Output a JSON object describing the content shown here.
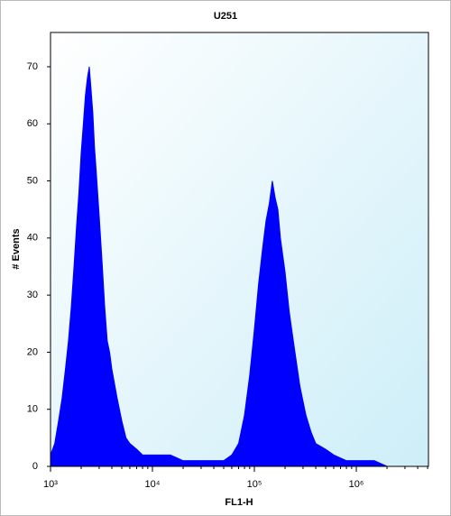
{
  "chart_data": {
    "type": "area",
    "title": "U251",
    "x_label": "FL1-H",
    "y_label": "# Events",
    "x_scale": "log",
    "color": "#0000ff",
    "xlim": [
      1000,
      5100000
    ],
    "xticks": [
      {
        "value": 1000,
        "label": "10³"
      },
      {
        "value": 10000,
        "label": "10⁴"
      },
      {
        "value": 100000,
        "label": "10⁵"
      },
      {
        "value": 1000000,
        "label": "10⁶"
      }
    ],
    "ylim": [
      0,
      76
    ],
    "yticks": [
      0,
      10,
      20,
      30,
      40,
      50,
      60,
      70
    ],
    "x": [
      1000,
      1100,
      1200,
      1300,
      1400,
      1500,
      1600,
      1700,
      1800,
      1900,
      2000,
      2100,
      2200,
      2300,
      2400,
      2500,
      2600,
      2700,
      2800,
      3000,
      3200,
      3400,
      3600,
      3800,
      4000,
      4500,
      5000,
      5500,
      6000,
      7000,
      8000,
      10000,
      15000,
      20000,
      30000,
      50000,
      60000,
      70000,
      80000,
      90000,
      100000,
      110000,
      120000,
      130000,
      140000,
      150000,
      160000,
      170000,
      180000,
      200000,
      220000,
      250000,
      280000,
      320000,
      360000,
      400000,
      500000,
      600000,
      800000,
      1000000,
      1500000,
      2000000,
      3000000
    ],
    "values": [
      2,
      4,
      8,
      12,
      17,
      22,
      28,
      35,
      42,
      48,
      55,
      60,
      65,
      68,
      70,
      66,
      62,
      56,
      52,
      44,
      36,
      28,
      22,
      20,
      17,
      12,
      8,
      5,
      4,
      3,
      2,
      2,
      2,
      1,
      1,
      1,
      2,
      4,
      9,
      16,
      24,
      32,
      38,
      43,
      46,
      50,
      47,
      45,
      40,
      34,
      27,
      20,
      14,
      9,
      6,
      4,
      3,
      2,
      1,
      1,
      1,
      0,
      0
    ]
  }
}
